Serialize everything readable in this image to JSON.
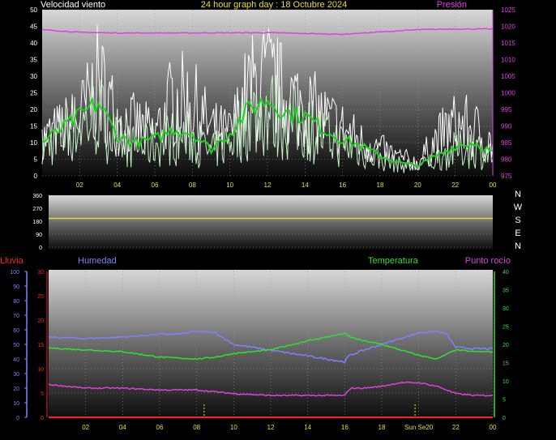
{
  "title": "24 hour graph day : 18 Octubre 2024",
  "colors": {
    "wind": "#ffffff",
    "wind_avg": "#22d022",
    "wind_light": "#c8f0c8",
    "pressure": "#e040e0",
    "direction_line": "#e8e020",
    "rain": "#ff2020",
    "humidity": "#8080ff",
    "temperature": "#30e030",
    "dewpoint": "#e040e0",
    "text_yellow": "#e8e020"
  },
  "chart_data": [
    {
      "type": "line",
      "id": "wind",
      "labels": {
        "left": "Velocidad viento",
        "right": "Presión"
      },
      "ylim": [
        0,
        50
      ],
      "y_ticks": [
        "0",
        "5",
        "10",
        "15",
        "20",
        "25",
        "30",
        "35",
        "40",
        "45",
        "50"
      ],
      "y2lim": [
        975,
        1025
      ],
      "y2_ticks": [
        "975",
        "980",
        "985",
        "990",
        "995",
        "1000",
        "1005",
        "1010",
        "1015",
        "1020",
        "1025"
      ],
      "x_ticks": [
        "02",
        "04",
        "06",
        "08",
        "10",
        "12",
        "14",
        "16",
        "18",
        "20",
        "22",
        "00"
      ],
      "gust_profile": [
        [
          0,
          14
        ],
        [
          2,
          22
        ],
        [
          3,
          36
        ],
        [
          4,
          22
        ],
        [
          5,
          19
        ],
        [
          6,
          16
        ],
        [
          7,
          30
        ],
        [
          8,
          28
        ],
        [
          9,
          18
        ],
        [
          10,
          16
        ],
        [
          11,
          33
        ],
        [
          12,
          37
        ],
        [
          13,
          30
        ],
        [
          14,
          27
        ],
        [
          15,
          22
        ],
        [
          16,
          18
        ],
        [
          17,
          13
        ],
        [
          18,
          10
        ],
        [
          19,
          7
        ],
        [
          20,
          5
        ],
        [
          21,
          14
        ],
        [
          22,
          20
        ],
        [
          23,
          18
        ],
        [
          24,
          12
        ]
      ],
      "avg_profile": [
        [
          0,
          10
        ],
        [
          1,
          14
        ],
        [
          2,
          18
        ],
        [
          3,
          22
        ],
        [
          4,
          12
        ],
        [
          5,
          10
        ],
        [
          6,
          11
        ],
        [
          7,
          14
        ],
        [
          8,
          13
        ],
        [
          9,
          8
        ],
        [
          10,
          13
        ],
        [
          11,
          20
        ],
        [
          12,
          23
        ],
        [
          13,
          19
        ],
        [
          14,
          18
        ],
        [
          15,
          14
        ],
        [
          16,
          11
        ],
        [
          17,
          9
        ],
        [
          18,
          6
        ],
        [
          19,
          4
        ],
        [
          20,
          3
        ],
        [
          21,
          6
        ],
        [
          22,
          9
        ],
        [
          23,
          10
        ],
        [
          24,
          7
        ]
      ],
      "pressure_profile": [
        [
          0,
          1019
        ],
        [
          2,
          1018.2
        ],
        [
          4,
          1018
        ],
        [
          8,
          1018
        ],
        [
          12,
          1018.1
        ],
        [
          16,
          1017.6
        ],
        [
          18,
          1018.3
        ],
        [
          20,
          1019
        ],
        [
          22,
          1019.2
        ],
        [
          24,
          1019.2
        ]
      ]
    },
    {
      "type": "line",
      "id": "direction",
      "labels": {
        "right": [
          "N",
          "W",
          "S",
          "E",
          "N"
        ]
      },
      "ylim": [
        0,
        360
      ],
      "y_ticks": [
        "0",
        "90",
        "180",
        "270",
        "360"
      ],
      "series": [
        {
          "values_flat": 200
        }
      ]
    },
    {
      "type": "line",
      "id": "temp_hum",
      "labels": {
        "rain": "Lluvia",
        "humidity": "Humedad",
        "temperature": "Temperatura",
        "dewpoint": "Punto rocío"
      },
      "humidity_ticks": [
        "0",
        "10",
        "20",
        "30",
        "40",
        "50",
        "60",
        "70",
        "80",
        "90",
        "100"
      ],
      "rain_ticks": [
        "0",
        "5",
        "10",
        "15",
        "20",
        "25",
        "30"
      ],
      "temp_ticks": [
        "0",
        "5",
        "10",
        "15",
        "20",
        "25",
        "30",
        "35",
        "40"
      ],
      "x_ticks": [
        "02",
        "04",
        "06",
        "08",
        "10",
        "12",
        "14",
        "16",
        "18",
        "Sun Se20",
        "22",
        "00"
      ],
      "humidity_profile": [
        [
          0,
          55
        ],
        [
          2,
          54
        ],
        [
          4,
          55
        ],
        [
          5,
          56
        ],
        [
          6,
          57
        ],
        [
          7,
          57
        ],
        [
          8,
          59
        ],
        [
          9,
          58
        ],
        [
          10,
          50
        ],
        [
          11,
          48
        ],
        [
          12,
          46
        ],
        [
          13,
          44
        ],
        [
          14,
          42
        ],
        [
          15,
          40
        ],
        [
          16,
          38
        ],
        [
          16.2,
          42
        ],
        [
          17,
          46
        ],
        [
          18,
          50
        ],
        [
          19,
          54
        ],
        [
          20,
          58
        ],
        [
          21,
          59
        ],
        [
          21.5,
          57
        ],
        [
          22,
          48
        ],
        [
          23,
          47
        ],
        [
          24,
          47
        ]
      ],
      "temperature_profile": [
        [
          0,
          19
        ],
        [
          2,
          18.5
        ],
        [
          4,
          18
        ],
        [
          6,
          16.5
        ],
        [
          8,
          16
        ],
        [
          9,
          16.5
        ],
        [
          10,
          17.5
        ],
        [
          12,
          18.5
        ],
        [
          14,
          21
        ],
        [
          15,
          22
        ],
        [
          16,
          23
        ],
        [
          16.3,
          22
        ],
        [
          17,
          21
        ],
        [
          18,
          20
        ],
        [
          19,
          18.5
        ],
        [
          20,
          17
        ],
        [
          21,
          16
        ],
        [
          22,
          18.5
        ],
        [
          23,
          18
        ],
        [
          24,
          18
        ]
      ],
      "dewpoint_profile": [
        [
          0,
          9
        ],
        [
          2,
          8
        ],
        [
          4,
          8
        ],
        [
          6,
          7.5
        ],
        [
          8,
          7.5
        ],
        [
          9,
          7
        ],
        [
          10,
          6.5
        ],
        [
          12,
          6
        ],
        [
          14,
          6
        ],
        [
          16,
          6
        ],
        [
          16.3,
          8
        ],
        [
          17,
          8
        ],
        [
          18,
          8.5
        ],
        [
          19,
          9.5
        ],
        [
          20,
          9.5
        ],
        [
          21,
          8.5
        ],
        [
          22,
          6.5
        ],
        [
          23,
          6
        ],
        [
          24,
          6
        ]
      ],
      "rain_values": 0
    }
  ]
}
